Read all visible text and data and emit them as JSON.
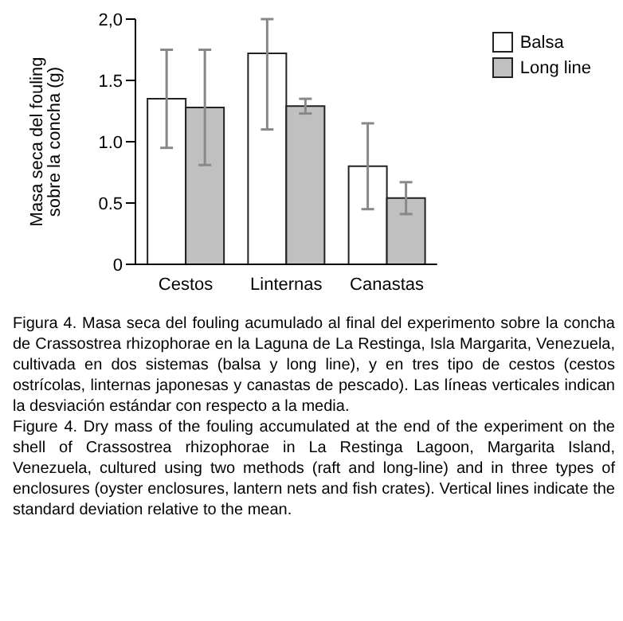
{
  "chart_data": {
    "type": "bar",
    "ylabel": "Masa seca del fouling sobre la concha (g)",
    "categories": [
      "Cestos",
      "Linternas",
      "Canastas"
    ],
    "series": [
      {
        "name": "Balsa",
        "color": "#ffffff",
        "values": [
          1.35,
          1.72,
          0.8
        ],
        "errors": [
          0.4,
          [
            1.1,
            2.0
          ],
          0.35
        ]
      },
      {
        "name": "Long line",
        "color": "#c0c0c0",
        "values": [
          1.28,
          1.29,
          0.54
        ],
        "errors": [
          0.47,
          0.06,
          0.13
        ]
      }
    ],
    "ylim": [
      0,
      2
    ],
    "yticks": [
      0,
      0.5,
      {
        "value": 1,
        "label": "1.0"
      },
      1.5,
      {
        "value": 2,
        "label": "2,0"
      }
    ],
    "grid": false,
    "legend": "top right",
    "annotations": [
      "Figura 4. Masa seca del fouling acumulado al final del experimento sobre la concha de Crassostrea rhizophorae en la Laguna de La Restinga, Isla Margarita, Venezuela, cultivada en dos sistemas (balsa y long line), y en tres tipo de cestos (cestos ostrícolas, linternas japonesas y canastas de pescado). Las líneas verticales indican la desviación estándar con respecto a la media.",
      "Figure 4. Dry mass of the fouling accumulated at the end of the experiment on the shell of Crassostrea rhizophorae in La Restinga Lagoon, Margarita Island, Venezuela, cultured using two methods (raft and long-line) and in three types of enclosures (oyster enclosures, lantern nets and fish crates). Vertical lines indicate the standard deviation relative to the mean."
    ]
  }
}
